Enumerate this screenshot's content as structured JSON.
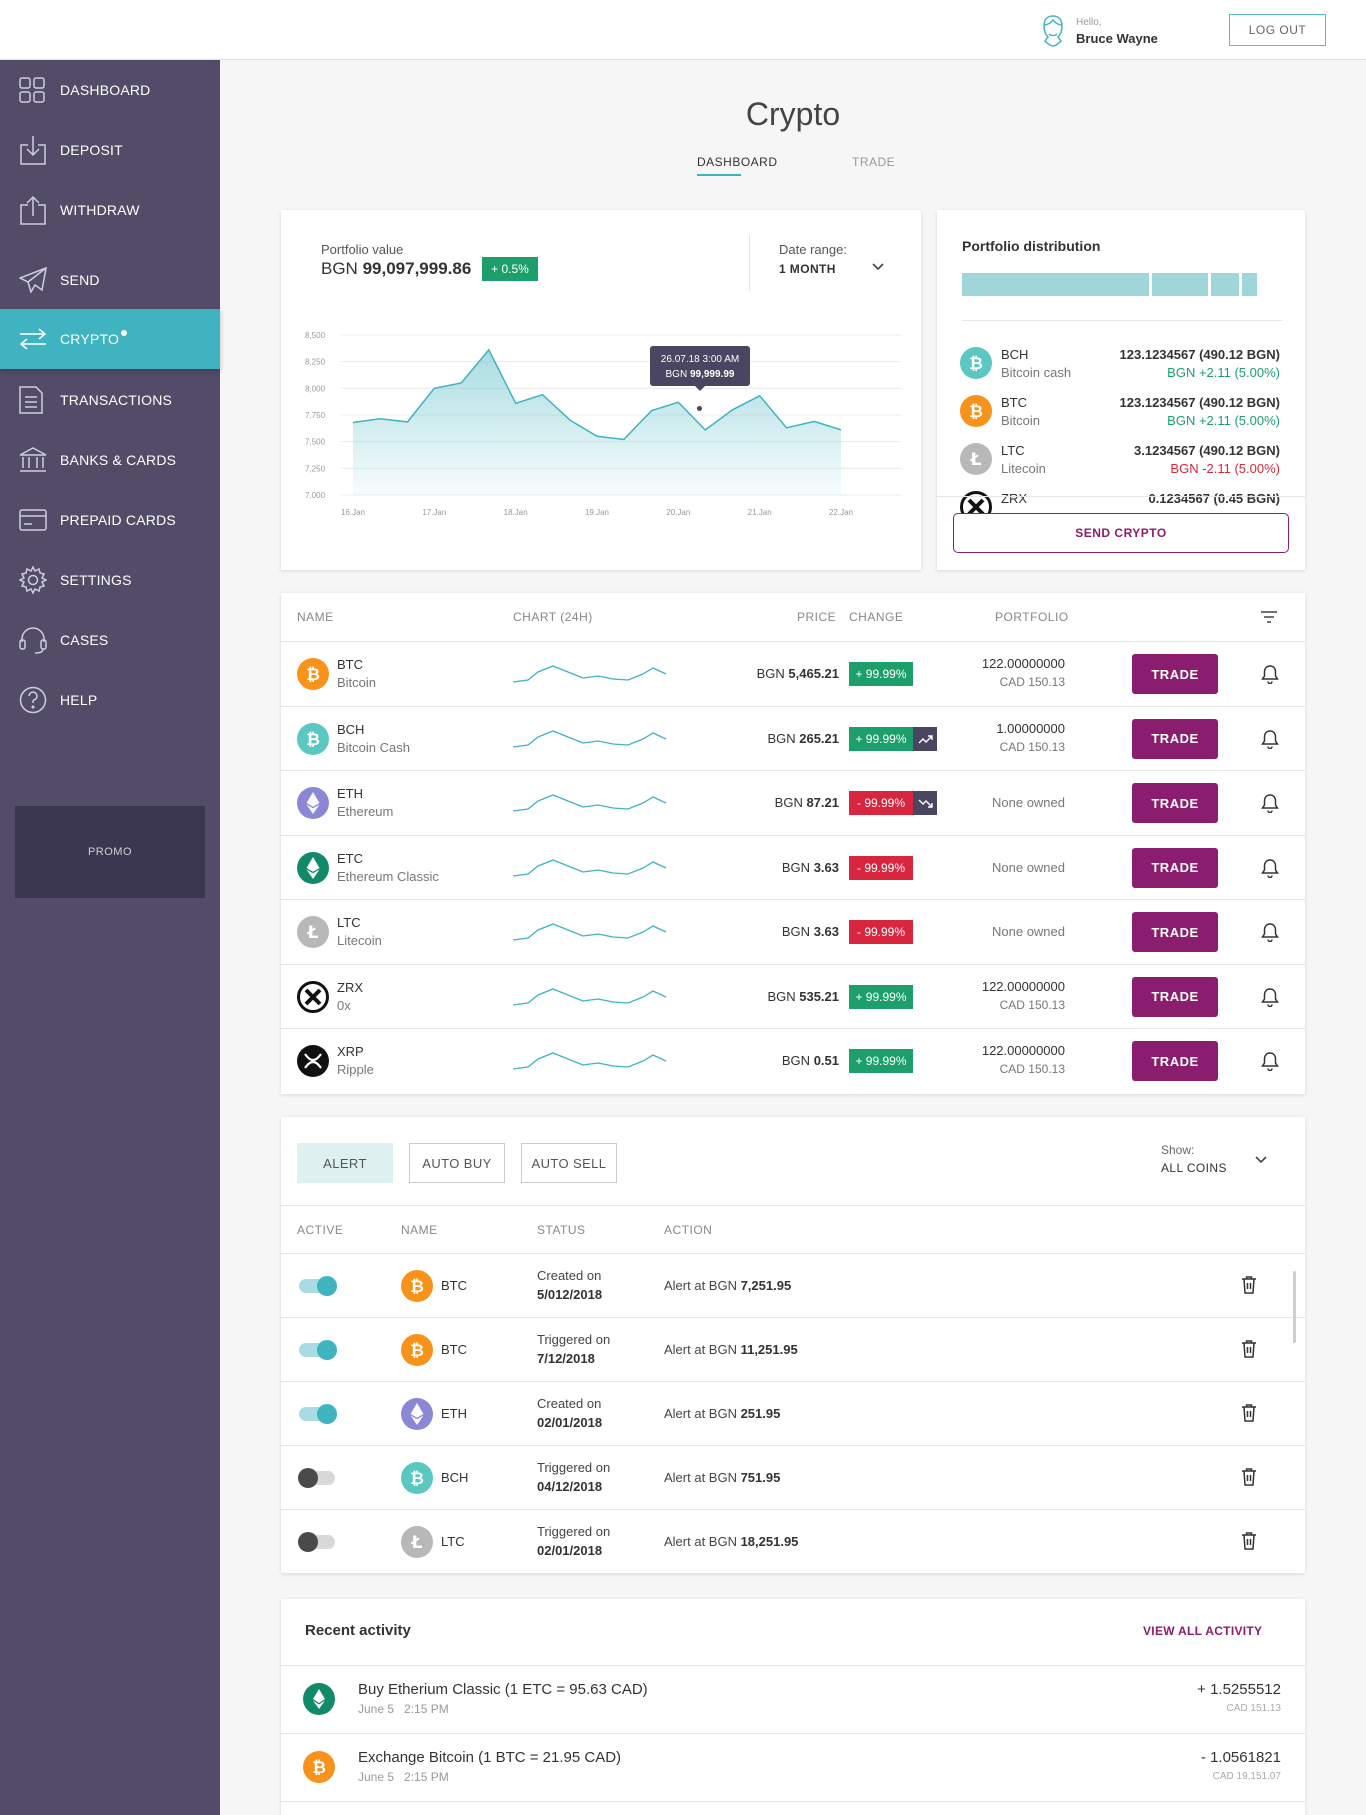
{
  "header": {
    "greeting": "Hello,",
    "user_name": "Bruce Wayne",
    "logout_label": "LOG OUT"
  },
  "sidebar": {
    "items": [
      {
        "label": "DASHBOARD",
        "icon": "grid-icon"
      },
      {
        "label": "DEPOSIT",
        "icon": "deposit-icon"
      },
      {
        "label": "WITHDRAW",
        "icon": "withdraw-icon"
      },
      {
        "label": "SEND",
        "icon": "paper-plane-icon"
      },
      {
        "label": "CRYPTO",
        "icon": "exchange-arrows-icon",
        "active": true
      },
      {
        "label": "TRANSACTIONS",
        "icon": "document-icon"
      },
      {
        "label": "BANKS & CARDS",
        "icon": "bank-icon"
      },
      {
        "label": "PREPAID CARDS",
        "icon": "card-icon"
      },
      {
        "label": "SETTINGS",
        "icon": "gear-icon"
      },
      {
        "label": "CASES",
        "icon": "headset-icon"
      },
      {
        "label": "HELP",
        "icon": "question-icon"
      }
    ],
    "promo_label": "PROMO"
  },
  "page": {
    "title": "Crypto",
    "tabs": [
      {
        "label": "DASHBOARD",
        "active": true
      },
      {
        "label": "TRADE",
        "active": false
      }
    ]
  },
  "portfolio": {
    "label": "Portfolio value",
    "currency": "BGN",
    "value": "99,097,999.86",
    "change": "+ 0.5%",
    "date_range_label": "Date range:",
    "date_range_value": "1 MONTH",
    "tooltip_date": "26.07.18  3:00 AM",
    "tooltip_currency": "BGN",
    "tooltip_value": "99,999.99"
  },
  "chart_data": {
    "type": "area",
    "x": [
      "16.Jan",
      "",
      "17.Jan",
      "",
      "18.Jan",
      "",
      "19.Jan",
      "",
      "20.Jan",
      "",
      "21.Jan",
      "",
      "22.Jan"
    ],
    "x_ticks": [
      "16.Jan",
      "17.Jan",
      "18.Jan",
      "19.Jan",
      "20.Jan",
      "21.Jan",
      "22.Jan"
    ],
    "y_ticks": [
      "8,500",
      "8,250",
      "8,000",
      "7,750",
      "7,500",
      "7,250",
      "7,000"
    ],
    "ylim": [
      7000,
      8500
    ],
    "points": [
      [
        0,
        7680
      ],
      [
        0.33,
        7715
      ],
      [
        0.67,
        7685
      ],
      [
        1,
        8000
      ],
      [
        1.33,
        8050
      ],
      [
        1.67,
        8360
      ],
      [
        2,
        7860
      ],
      [
        2.33,
        7940
      ],
      [
        2.67,
        7700
      ],
      [
        3,
        7550
      ],
      [
        3.33,
        7520
      ],
      [
        3.67,
        7790
      ],
      [
        4,
        7870
      ],
      [
        4.33,
        7610
      ],
      [
        4.67,
        7800
      ],
      [
        5,
        7930
      ],
      [
        5,
        7930
      ],
      [
        5.33,
        7630
      ],
      [
        5.67,
        7690
      ],
      [
        6,
        7610
      ]
    ],
    "color": "#3fb3bf",
    "grid": true
  },
  "distribution": {
    "title": "Portfolio distribution",
    "bar_segments": [
      0.6,
      0.18,
      0.09,
      0.05
    ],
    "items": [
      {
        "symbol": "BCH",
        "name": "Bitcoin cash",
        "amount": "123.1234567 (490.12 BGN)",
        "change": "BGN +2.11 (5.00%)",
        "up": true
      },
      {
        "symbol": "BTC",
        "name": "Bitcoin",
        "amount": "123.1234567 (490.12 BGN)",
        "change": "BGN +2.11 (5.00%)",
        "up": true
      },
      {
        "symbol": "LTC",
        "name": "Litecoin",
        "amount": "3.1234567 (490.12 BGN)",
        "change": "BGN -2.11 (5.00%)",
        "up": false
      },
      {
        "symbol": "ZRX",
        "name": "",
        "amount": "0.1234567 (0.45 BGN)",
        "change": "",
        "up": true
      }
    ],
    "send_label": "SEND CRYPTO"
  },
  "coins_table": {
    "headers": {
      "name": "NAME",
      "chart": "CHART (24H)",
      "price": "PRICE",
      "change": "CHANGE",
      "portfolio": "PORTFOLIO"
    },
    "trade_label": "TRADE",
    "rows": [
      {
        "symbol": "BTC",
        "name": "Bitcoin",
        "currency": "BGN",
        "price": "5,465.21",
        "change": "+ 99.99%",
        "up": true,
        "trend": "",
        "holding": "122.00000000",
        "holding_cad": "CAD 150.13"
      },
      {
        "symbol": "BCH",
        "name": "Bitcoin Cash",
        "currency": "BGN",
        "price": "265.21",
        "change": "+ 99.99%",
        "up": true,
        "trend": "trend-up-icon",
        "holding": "1.00000000",
        "holding_cad": "CAD 150.13"
      },
      {
        "symbol": "ETH",
        "name": "Ethereum",
        "currency": "BGN",
        "price": "87.21",
        "change": "- 99.99%",
        "up": false,
        "trend": "trend-down-icon",
        "holding": "None owned",
        "holding_cad": ""
      },
      {
        "symbol": "ETC",
        "name": "Ethereum Classic",
        "currency": "BGN",
        "price": "3.63",
        "change": "- 99.99%",
        "up": false,
        "trend": "",
        "holding": "None owned",
        "holding_cad": ""
      },
      {
        "symbol": "LTC",
        "name": "Litecoin",
        "currency": "BGN",
        "price": "3.63",
        "change": "- 99.99%",
        "up": false,
        "trend": "",
        "holding": "None owned",
        "holding_cad": ""
      },
      {
        "symbol": "ZRX",
        "name": "0x",
        "currency": "BGN",
        "price": "535.21",
        "change": "+ 99.99%",
        "up": true,
        "trend": "",
        "holding": "122.00000000",
        "holding_cad": "CAD 150.13"
      },
      {
        "symbol": "XRP",
        "name": "Ripple",
        "currency": "BGN",
        "price": "0.51",
        "change": "+ 99.99%",
        "up": true,
        "trend": "",
        "holding": "122.00000000",
        "holding_cad": "CAD 150.13"
      }
    ]
  },
  "alerts": {
    "tabs": [
      "ALERT",
      "AUTO BUY",
      "AUTO SELL"
    ],
    "show_label": "Show:",
    "show_value": "ALL COINS",
    "headers": {
      "active": "ACTIVE",
      "name": "NAME",
      "status": "STATUS",
      "action": "ACTION"
    },
    "rows": [
      {
        "active": true,
        "symbol": "BTC",
        "status": "Created on",
        "date": "5/012/2018",
        "action_prefix": "Alert at BGN ",
        "amount": "7,251.95"
      },
      {
        "active": true,
        "symbol": "BTC",
        "status": "Triggered on",
        "date": "7/12/2018",
        "action_prefix": "Alert at BGN ",
        "amount": "11,251.95"
      },
      {
        "active": true,
        "symbol": "ETH",
        "status": "Created on",
        "date": "02/01/2018",
        "action_prefix": "Alert at BGN ",
        "amount": "251.95"
      },
      {
        "active": false,
        "symbol": "BCH",
        "status": "Triggered on",
        "date": "04/12/2018",
        "action_prefix": "Alert at BGN ",
        "amount": "751.95"
      },
      {
        "active": false,
        "symbol": "LTC",
        "status": "Triggered on",
        "date": "02/01/2018",
        "action_prefix": "Alert at BGN ",
        "amount": "18,251.95"
      }
    ]
  },
  "activity": {
    "title": "Recent activity",
    "view_all": "VIEW ALL ACTIVITY",
    "items": [
      {
        "symbol": "ETC",
        "title": "Buy Etherium Classic (1 ETC = 95.63 CAD)",
        "date": "June 5",
        "time": "2:15 PM",
        "amount": "+ 1.5255512",
        "cad": "CAD 151.13"
      },
      {
        "symbol": "BTC",
        "title": "Exchange Bitcoin (1 BTC = 21.95 CAD)",
        "date": "June 5",
        "time": "2:15 PM",
        "amount": "- 1.0561821",
        "cad": "CAD 19,151.07"
      }
    ]
  },
  "colors": {
    "sidebar": "#524c68",
    "accent": "#3fb3bf",
    "trade": "#8b1d6f",
    "up": "#1d9f6b",
    "down": "#d7263d",
    "btc": "#f7931a",
    "bch": "#5ac8c0",
    "eth": "#8c87d4",
    "etc": "#118a6a",
    "ltc": "#b8b8b8"
  }
}
